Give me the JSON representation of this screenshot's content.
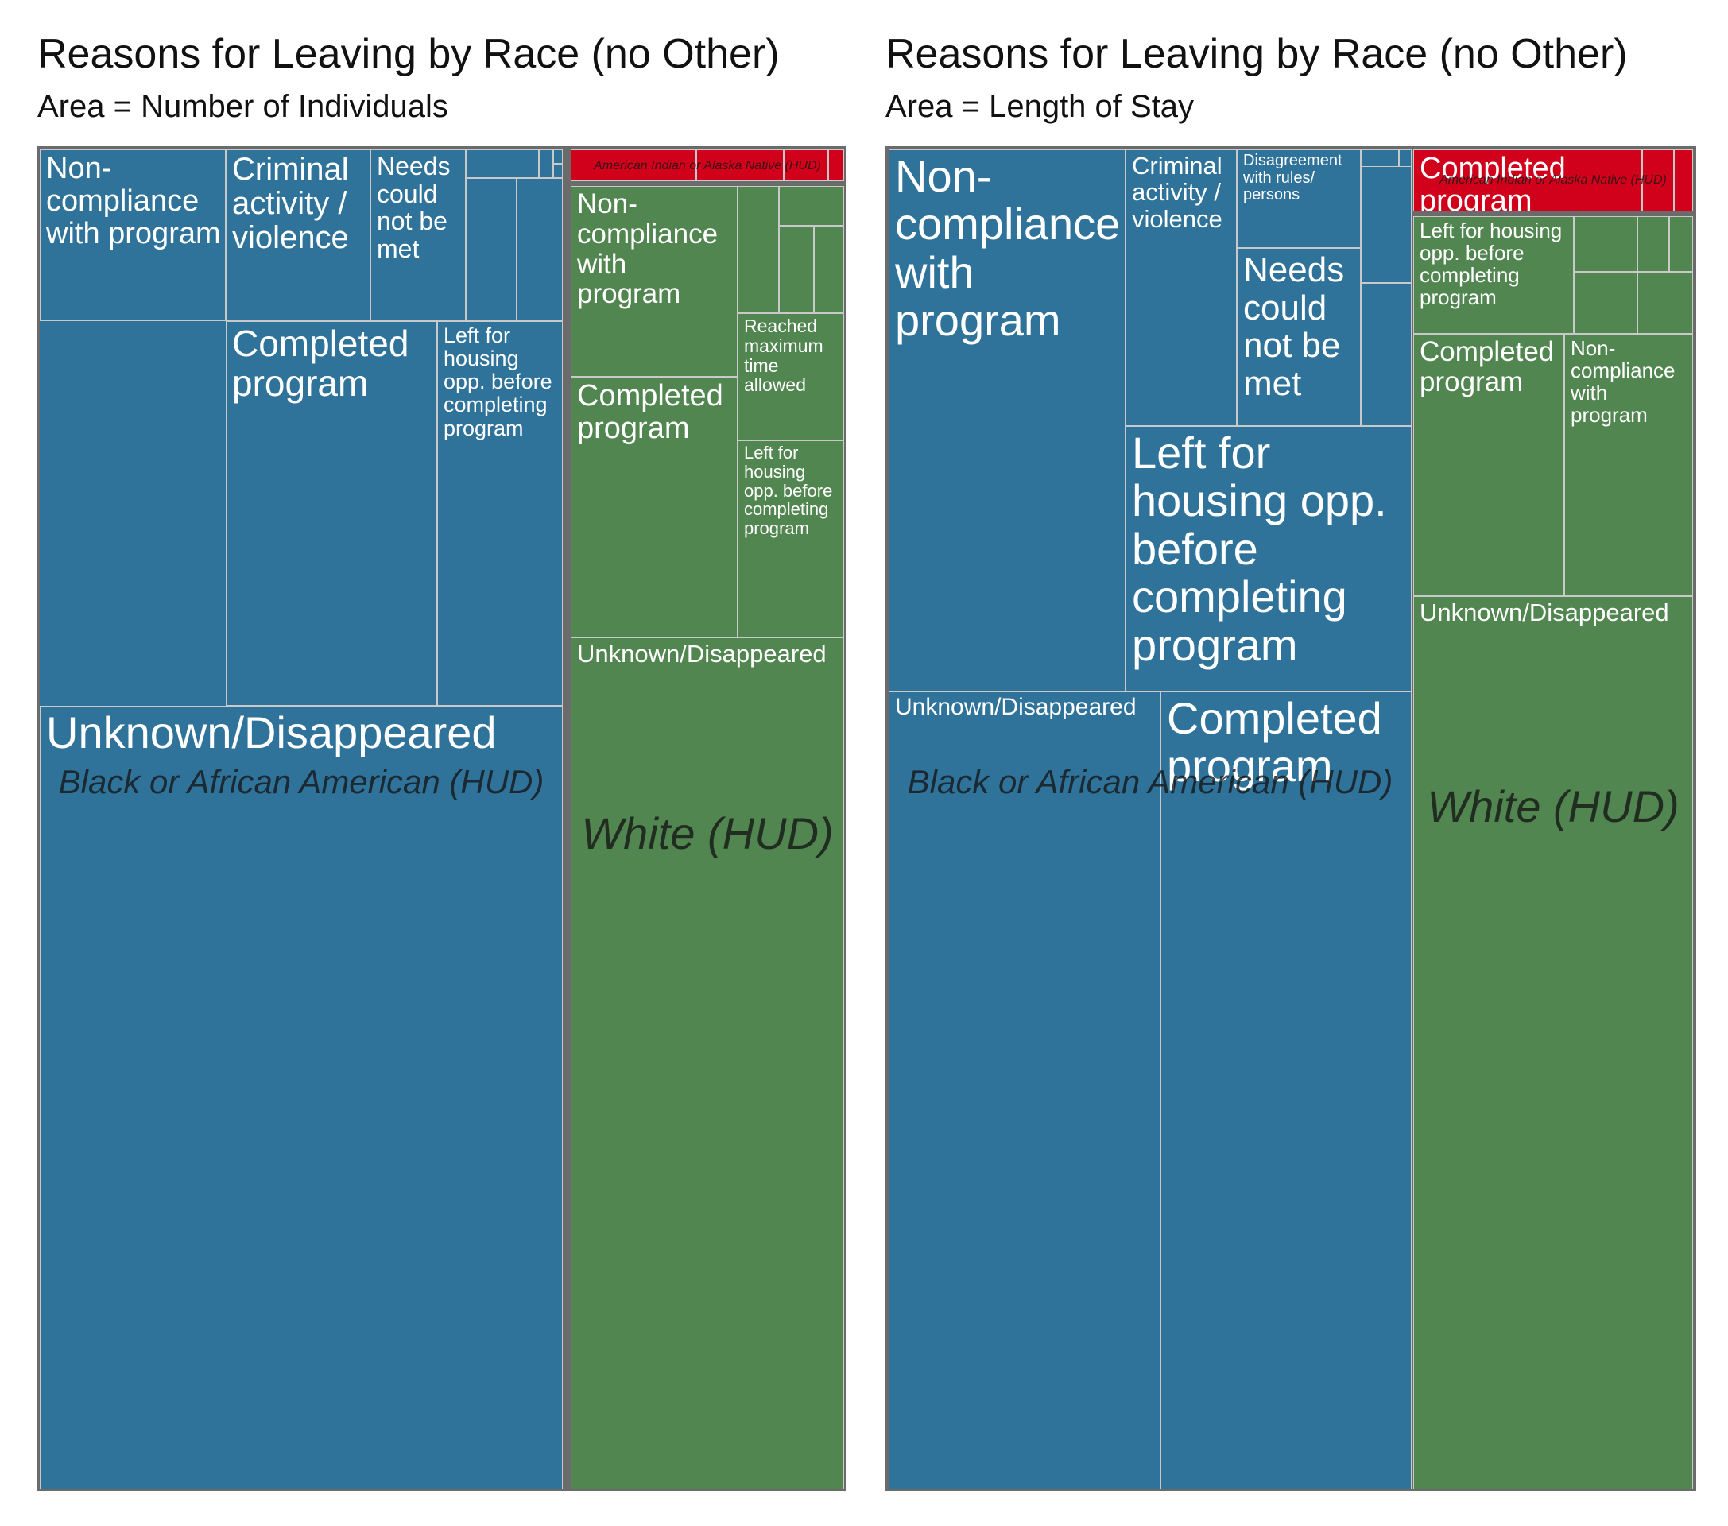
{
  "colors": {
    "black_or_african_american": "#30739a",
    "white": "#528651",
    "american_indian": "#d1011c",
    "frame": "#6b6b6b",
    "cell_border": "#c9c9c9"
  },
  "chart_data": [
    {
      "type": "treemap",
      "title": "Reasons for Leaving by Race (no Other)",
      "subtitle": "Area = Number of Individuals",
      "groups": [
        {
          "name": "Black or African American (HUD)",
          "color": "#30739a",
          "cells": [
            {
              "label": "Unknown/Disappeared",
              "value": 33.1
            },
            {
              "label": "Non-compliance with program",
              "value": 10.3
            },
            {
              "label": "Completed program",
              "value": 8.5
            },
            {
              "label": "Left for housing opp. before completing program",
              "value": 6.5
            },
            {
              "label": "Criminal activity / violence",
              "value": 5.2
            },
            {
              "label": "Needs could not be met",
              "value": 3.0
            },
            {
              "label": "",
              "value": 1.5
            },
            {
              "label": "",
              "value": 1.5
            },
            {
              "label": "",
              "value": 0.4
            },
            {
              "label": "",
              "value": 0.2
            },
            {
              "label": "",
              "value": 0.1
            },
            {
              "label": "",
              "value": 0.05
            }
          ]
        },
        {
          "name": "White (HUD)",
          "color": "#528651",
          "cells": [
            {
              "label": "Unknown/Disappeared",
              "value": 13.3
            },
            {
              "label": "Non-compliance with program",
              "value": 3.6
            },
            {
              "label": "Completed program",
              "value": 3.6
            },
            {
              "label": "Left for housing opp. before completing program",
              "value": 2.1
            },
            {
              "label": "Reached maximum time allowed",
              "value": 1.4
            },
            {
              "label": "",
              "value": 1.1
            },
            {
              "label": "",
              "value": 0.5
            },
            {
              "label": "",
              "value": 0.4
            },
            {
              "label": "",
              "value": 0.3
            }
          ]
        },
        {
          "name": "American Indian or Alaska Native (HUD)",
          "color": "#d1011c",
          "cells": [
            {
              "label": "",
              "value": 0.5
            },
            {
              "label": "",
              "value": 0.3
            },
            {
              "label": "",
              "value": 0.2
            },
            {
              "label": "",
              "value": 0.1
            }
          ]
        }
      ]
    },
    {
      "type": "treemap",
      "title": "Reasons for Leaving by Race (no Other)",
      "subtitle": "Area = Length of Stay",
      "groups": [
        {
          "name": "Black or African American (HUD)",
          "color": "#30739a",
          "cells": [
            {
              "label": "Non-compliance with program",
              "value": 14.3
            },
            {
              "label": "Unknown/Disappeared",
              "value": 12.1
            },
            {
              "label": "Completed program",
              "value": 11.0
            },
            {
              "label": "Left for housing opp. before completing program",
              "value": 6.8
            },
            {
              "label": "Criminal activity / violence",
              "value": 4.4
            },
            {
              "label": "Needs could not be met",
              "value": 3.1
            },
            {
              "label": "Disagreement with rules/ persons",
              "value": 2.7
            },
            {
              "label": "",
              "value": 1.2
            },
            {
              "label": "",
              "value": 0.6
            },
            {
              "label": "",
              "value": 0.1
            },
            {
              "label": "",
              "value": 0.1
            }
          ]
        },
        {
          "name": "White (HUD)",
          "color": "#528651",
          "cells": [
            {
              "label": "Unknown/Disappeared",
              "value": 16.7
            },
            {
              "label": "Completed program",
              "value": 4.6
            },
            {
              "label": "Non-compliance with program",
              "value": 4.2
            },
            {
              "label": "Left for housing opp. before completing program",
              "value": 3.9
            },
            {
              "label": "",
              "value": 0.9
            },
            {
              "label": "",
              "value": 0.8
            },
            {
              "label": "",
              "value": 0.7
            },
            {
              "label": "",
              "value": 0.6
            },
            {
              "label": "",
              "value": 0.3
            }
          ]
        },
        {
          "name": "American Indian or Alaska Native (HUD)",
          "color": "#d1011c",
          "cells": [
            {
              "label": "Completed program",
              "value": 1.6
            },
            {
              "label": "",
              "value": 0.4
            },
            {
              "label": "",
              "value": 0.2
            }
          ]
        }
      ]
    }
  ]
}
